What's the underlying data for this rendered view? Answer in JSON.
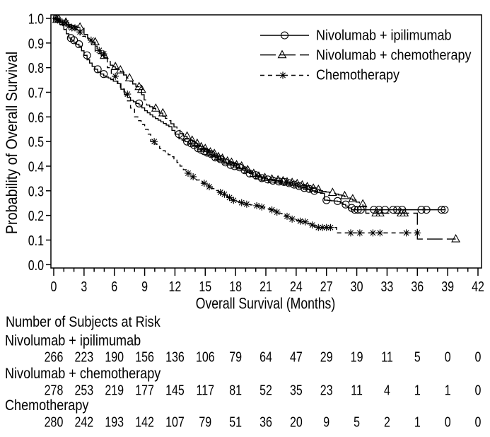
{
  "chart_data": {
    "type": "line",
    "xlabel": "Overall Survival (Months)",
    "ylabel": "Probability of Overall Survival",
    "xlim": [
      0,
      42
    ],
    "ylim": [
      0,
      1
    ],
    "x_ticks": [
      0,
      3,
      6,
      9,
      12,
      15,
      18,
      21,
      24,
      27,
      30,
      33,
      36,
      39,
      42
    ],
    "x_tick_labels": [
      "0",
      "3",
      "6",
      "9",
      "12",
      "15",
      "18",
      "21",
      "24",
      "27",
      "30",
      "33",
      "36",
      "39",
      "42"
    ],
    "x_minor_tick_step": 1,
    "y_ticks": [
      0,
      0.1,
      0.2,
      0.3,
      0.4,
      0.5,
      0.6,
      0.7,
      0.8,
      0.9,
      1.0
    ],
    "y_tick_labels": [
      "0.0",
      "0.1",
      "0.2",
      "0.3",
      "0.4",
      "0.5",
      "0.6",
      "0.7",
      "0.8",
      "0.9",
      "1.0"
    ],
    "grid": false,
    "legend": {
      "placement": "top-right"
    },
    "series": [
      {
        "name": "Nivolumab + ipilimumab",
        "line_style": "solid",
        "marker": "circle",
        "color": "#000000",
        "points": [
          [
            0,
            1.0
          ],
          [
            0.3,
            0.99
          ],
          [
            0.6,
            0.975
          ],
          [
            1.0,
            0.955
          ],
          [
            1.5,
            0.92
          ],
          [
            2.0,
            0.903
          ],
          [
            2.5,
            0.887
          ],
          [
            3.0,
            0.85
          ],
          [
            3.3,
            0.832
          ],
          [
            3.8,
            0.805
          ],
          [
            4.35,
            0.782
          ],
          [
            4.95,
            0.766
          ],
          [
            5.4,
            0.758
          ],
          [
            5.9,
            0.745
          ],
          [
            6.3,
            0.735
          ],
          [
            7.0,
            0.69
          ],
          [
            7.6,
            0.668
          ],
          [
            8.45,
            0.648
          ],
          [
            9.0,
            0.625
          ],
          [
            9.8,
            0.6
          ],
          [
            10.6,
            0.58
          ],
          [
            11.4,
            0.56
          ],
          [
            12.0,
            0.53
          ],
          [
            12.4,
            0.511
          ],
          [
            13.0,
            0.5
          ],
          [
            14.0,
            0.478
          ],
          [
            15.4,
            0.449
          ],
          [
            16.8,
            0.415
          ],
          [
            18.4,
            0.39
          ],
          [
            20.0,
            0.357
          ],
          [
            21.4,
            0.343
          ],
          [
            22.8,
            0.334
          ],
          [
            24.2,
            0.319
          ],
          [
            25.6,
            0.3
          ],
          [
            26.4,
            0.29
          ],
          [
            26.8,
            0.262
          ],
          [
            28.1,
            0.257
          ],
          [
            28.9,
            0.238
          ],
          [
            29.5,
            0.223
          ],
          [
            38.8,
            0.223
          ]
        ],
        "censor_times": [
          0.3,
          1.7,
          2.0,
          2.5,
          3.3,
          4.35,
          4.95,
          8.45,
          12.4,
          13.2,
          13.6,
          13.9,
          14.3,
          14.6,
          14.9,
          15.2,
          15.6,
          16.0,
          16.5,
          17.0,
          17.5,
          17.9,
          18.4,
          18.9,
          19.4,
          20.0,
          20.6,
          21.2,
          21.7,
          22.3,
          22.8,
          23.3,
          23.8,
          24.3,
          24.8,
          25.3,
          25.8,
          27.0,
          28.1,
          28.9,
          29.5,
          29.8,
          30.1,
          30.4,
          31.7,
          32.2,
          32.8,
          33.6,
          34.0,
          34.5,
          36.4,
          36.9,
          38.4,
          38.7
        ]
      },
      {
        "name": "Nivolumab + chemotherapy",
        "line_style": "long-dash",
        "marker": "triangle",
        "color": "#000000",
        "points": [
          [
            0,
            1.0
          ],
          [
            0.5,
            0.99
          ],
          [
            1.2,
            0.978
          ],
          [
            2.0,
            0.968
          ],
          [
            2.6,
            0.96
          ],
          [
            3.0,
            0.935
          ],
          [
            3.7,
            0.904
          ],
          [
            4.1,
            0.866
          ],
          [
            5.0,
            0.84
          ],
          [
            5.6,
            0.81
          ],
          [
            6.1,
            0.797
          ],
          [
            6.6,
            0.783
          ],
          [
            7.5,
            0.745
          ],
          [
            8.45,
            0.711
          ],
          [
            8.7,
            0.69
          ],
          [
            9.2,
            0.648
          ],
          [
            10.1,
            0.628
          ],
          [
            10.8,
            0.603
          ],
          [
            11.3,
            0.585
          ],
          [
            11.9,
            0.559
          ],
          [
            12.5,
            0.532
          ],
          [
            13.2,
            0.511
          ],
          [
            14.0,
            0.492
          ],
          [
            15.4,
            0.457
          ],
          [
            16.8,
            0.425
          ],
          [
            18.4,
            0.4
          ],
          [
            20.0,
            0.362
          ],
          [
            21.4,
            0.347
          ],
          [
            22.8,
            0.338
          ],
          [
            24.2,
            0.326
          ],
          [
            25.6,
            0.31
          ],
          [
            26.3,
            0.3
          ],
          [
            27.6,
            0.29
          ],
          [
            28.8,
            0.276
          ],
          [
            29.6,
            0.262
          ],
          [
            30.6,
            0.238
          ],
          [
            30.9,
            0.209
          ],
          [
            36.0,
            0.209
          ],
          [
            36.0,
            0.104
          ],
          [
            39.8,
            0.104
          ]
        ],
        "censor_times": [
          0.3,
          1.2,
          2.6,
          4.1,
          5.0,
          6.1,
          6.6,
          7.5,
          8.45,
          8.7,
          10.1,
          10.8,
          13.2,
          13.7,
          14.2,
          14.6,
          15.0,
          15.5,
          15.9,
          16.3,
          16.7,
          17.2,
          17.6,
          18.1,
          18.6,
          19.2,
          19.8,
          20.3,
          20.9,
          21.6,
          22.2,
          22.7,
          23.1,
          23.6,
          24.1,
          24.6,
          25.1,
          25.7,
          26.2,
          27.6,
          28.8,
          29.6,
          30.6,
          31.9,
          32.3,
          34.4,
          34.7,
          39.8
        ]
      },
      {
        "name": "Chemotherapy",
        "line_style": "dash",
        "marker": "asterisk",
        "color": "#000000",
        "points": [
          [
            0,
            1.0
          ],
          [
            0.5,
            0.99
          ],
          [
            1.2,
            0.975
          ],
          [
            2.1,
            0.955
          ],
          [
            2.6,
            0.935
          ],
          [
            3.7,
            0.904
          ],
          [
            4.3,
            0.87
          ],
          [
            4.95,
            0.842
          ],
          [
            5.3,
            0.8
          ],
          [
            5.7,
            0.765
          ],
          [
            6.1,
            0.745
          ],
          [
            6.6,
            0.72
          ],
          [
            7.3,
            0.665
          ],
          [
            7.6,
            0.636
          ],
          [
            8.0,
            0.6
          ],
          [
            8.65,
            0.569
          ],
          [
            9.35,
            0.53
          ],
          [
            9.6,
            0.5
          ],
          [
            9.95,
            0.49
          ],
          [
            10.75,
            0.463
          ],
          [
            11.9,
            0.43
          ],
          [
            12.5,
            0.4
          ],
          [
            13.5,
            0.357
          ],
          [
            15.05,
            0.324
          ],
          [
            16.6,
            0.286
          ],
          [
            17.5,
            0.266
          ],
          [
            18.65,
            0.247
          ],
          [
            20.3,
            0.238
          ],
          [
            21.7,
            0.219
          ],
          [
            23.5,
            0.185
          ],
          [
            24.9,
            0.171
          ],
          [
            26.1,
            0.151
          ],
          [
            28.0,
            0.151
          ],
          [
            28.0,
            0.129
          ],
          [
            36.2,
            0.129
          ]
        ],
        "censor_times": [
          0.2,
          0.4,
          0.6,
          0.9,
          1.2,
          1.5,
          1.8,
          2.1,
          2.6,
          3.7,
          4.5,
          4.95,
          6.1,
          7.3,
          9.95,
          13.3,
          13.8,
          14.9,
          15.4,
          16.5,
          16.9,
          17.4,
          17.8,
          18.6,
          19.1,
          20.1,
          20.6,
          21.6,
          22.1,
          23.1,
          23.6,
          24.4,
          24.9,
          25.6,
          26.2,
          26.6,
          27.0,
          27.4,
          29.4,
          30.3,
          31.6,
          32.3,
          34.9,
          36.0
        ]
      }
    ]
  },
  "risk_table": {
    "title": "Number of Subjects at Risk",
    "timepoints": [
      0,
      3,
      6,
      9,
      12,
      15,
      18,
      21,
      24,
      27,
      30,
      33,
      36,
      39,
      42
    ],
    "rows": [
      {
        "label": "Nivolumab + ipilimumab",
        "values": [
          266,
          223,
          190,
          156,
          136,
          106,
          79,
          64,
          47,
          29,
          19,
          11,
          5,
          0,
          0
        ]
      },
      {
        "label": "Nivolumab + chemotherapy",
        "values": [
          278,
          253,
          219,
          177,
          145,
          117,
          81,
          52,
          35,
          23,
          11,
          4,
          1,
          1,
          0
        ]
      },
      {
        "label": "Chemotherapy",
        "values": [
          280,
          242,
          193,
          142,
          107,
          79,
          51,
          36,
          20,
          9,
          5,
          2,
          1,
          0,
          0
        ]
      }
    ]
  }
}
